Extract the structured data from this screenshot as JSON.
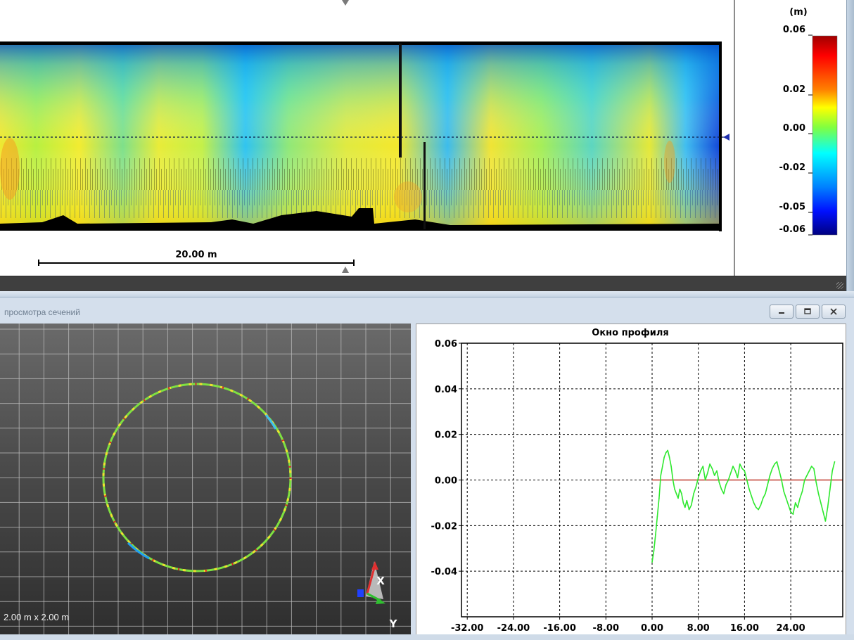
{
  "top_map": {
    "scale_bar_label": "20.00 m",
    "legend": {
      "unit": "(m)",
      "ticks": [
        {
          "value": 0.06,
          "label": "0.06"
        },
        {
          "value": 0.02,
          "label": "0.02"
        },
        {
          "value": 0.0,
          "label": "0.00"
        },
        {
          "value": -0.02,
          "label": "-0.02"
        },
        {
          "value": -0.05,
          "label": "-0.05"
        },
        {
          "value": -0.06,
          "label": "-0.06"
        }
      ],
      "colors": [
        "#ff0000",
        "#ff8000",
        "#ffff00",
        "#80ff40",
        "#00ffff",
        "#0080ff",
        "#0000c0",
        "#000080"
      ]
    }
  },
  "section_window": {
    "title": "просмотра сечений",
    "buttons": {
      "minimize": "minimize",
      "restore": "restore",
      "close": "close"
    },
    "section_view": {
      "scale_label": "2.00 m x 2.00 m",
      "axis_x_label": "X",
      "axis_y_label": "Y"
    },
    "profile": {
      "title": "Окно профиля",
      "x_tick_labels": [
        "-32.00",
        "-24.00",
        "-16.00",
        "-8.00",
        "0.00",
        "8.00",
        "16.00",
        "24.00"
      ],
      "y_tick_labels": [
        "0.06",
        "0.04",
        "0.02",
        "0.00",
        "-0.02",
        "-0.04"
      ]
    }
  },
  "chart_data": {
    "type": "line",
    "title": "Окно профиля",
    "xlabel": "",
    "ylabel": "",
    "xlim": [
      -33,
      33
    ],
    "ylim": [
      -0.06,
      0.06
    ],
    "x_ticks": [
      -32,
      -24,
      -16,
      -8,
      0,
      8,
      16,
      24
    ],
    "y_ticks": [
      0.06,
      0.04,
      0.02,
      0.0,
      -0.02,
      -0.04
    ],
    "grid": true,
    "series": [
      {
        "color": "#2ee82e",
        "x": [
          0.0,
          0.3,
          0.6,
          0.9,
          1.2,
          1.5,
          1.8,
          2.1,
          2.4,
          2.7,
          3.0,
          3.3,
          3.6,
          3.9,
          4.2,
          4.5,
          4.8,
          5.1,
          5.4,
          5.7,
          6.0,
          6.4,
          6.8,
          7.2,
          7.6,
          8.0,
          8.4,
          8.8,
          9.2,
          9.6,
          10.0,
          10.4,
          10.8,
          11.2,
          11.6,
          12.0,
          12.4,
          12.8,
          13.2,
          13.6,
          14.0,
          14.4,
          14.8,
          15.2,
          15.6,
          16.0,
          16.4,
          16.8,
          17.2,
          17.6,
          18.0,
          18.4,
          18.8,
          19.2,
          19.6,
          20.0,
          20.4,
          20.8,
          21.2,
          21.6,
          22.0,
          22.4,
          22.8,
          23.2,
          23.6,
          24.0,
          24.4,
          24.8,
          25.2,
          25.6,
          26.0,
          26.4,
          26.8,
          27.2,
          27.6,
          28.0,
          28.4,
          28.8,
          29.2,
          29.6,
          30.0,
          30.4,
          30.8,
          31.2,
          31.6
        ],
        "y": [
          -0.036,
          -0.031,
          -0.024,
          -0.016,
          -0.008,
          0.002,
          0.006,
          0.01,
          0.012,
          0.013,
          0.01,
          0.006,
          0.0,
          -0.004,
          -0.006,
          -0.008,
          -0.004,
          -0.006,
          -0.01,
          -0.012,
          -0.009,
          -0.013,
          -0.011,
          -0.006,
          -0.003,
          0.001,
          0.004,
          0.006,
          0.0,
          0.003,
          0.007,
          0.005,
          0.002,
          0.004,
          -0.001,
          -0.004,
          -0.006,
          -0.002,
          0.0,
          0.003,
          0.006,
          0.004,
          0.001,
          0.007,
          0.005,
          0.004,
          0.0,
          -0.004,
          -0.007,
          -0.01,
          -0.012,
          -0.013,
          -0.011,
          -0.008,
          -0.006,
          -0.002,
          0.002,
          0.005,
          0.007,
          0.008,
          0.004,
          0.0,
          -0.005,
          -0.008,
          -0.011,
          -0.014,
          -0.015,
          -0.01,
          -0.012,
          -0.008,
          -0.005,
          0.0,
          0.002,
          0.004,
          0.006,
          0.005,
          -0.001,
          -0.006,
          -0.01,
          -0.014,
          -0.018,
          -0.012,
          -0.004,
          0.004,
          0.008
        ]
      },
      {
        "color": "#c0392b",
        "x": [
          0.0,
          33.0
        ],
        "y": [
          0.0,
          0.0
        ]
      }
    ]
  }
}
